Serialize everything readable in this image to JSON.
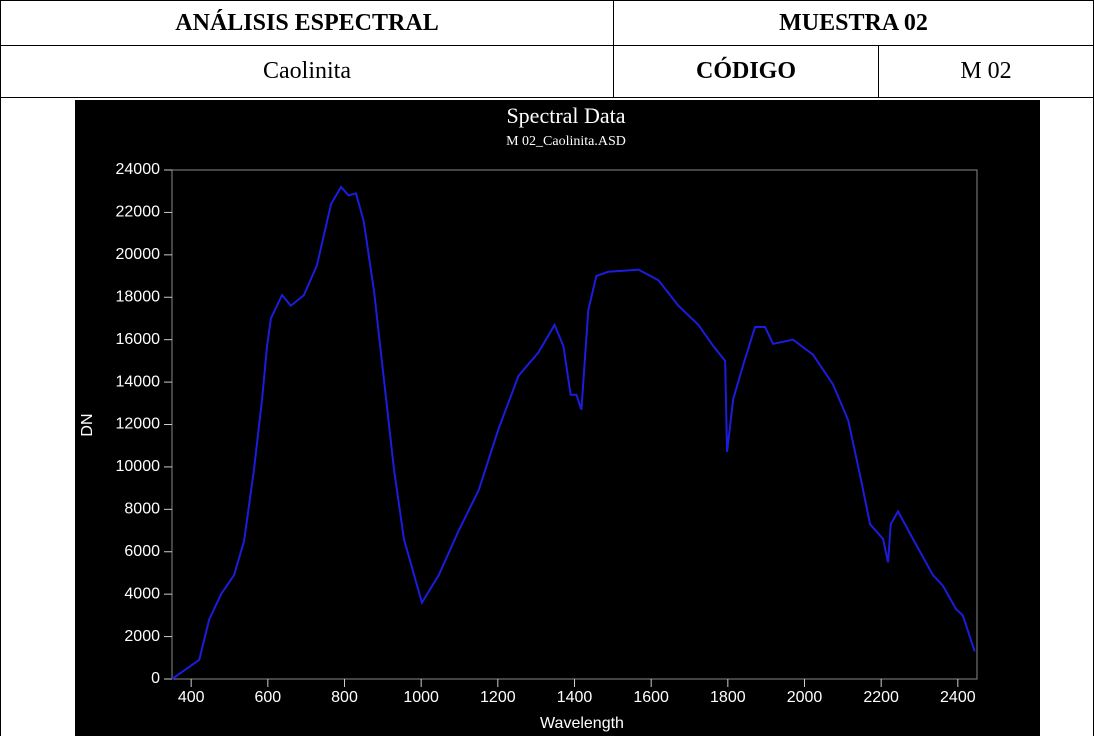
{
  "table": {
    "rows": [
      [
        "ANÁLISIS ESPECTRAL",
        "MUESTRA 02"
      ],
      [
        "Caolinita",
        "CÓDIGO",
        "M 02"
      ]
    ]
  },
  "chart_data": {
    "type": "line",
    "title": "Spectral Data",
    "subtitle": "M 02_Caolinita.ASD",
    "x_label": "Wavelength",
    "y_label": "DN",
    "x": [
      350,
      421,
      447,
      478,
      512,
      538,
      564,
      585,
      598,
      608,
      637,
      660,
      694,
      728,
      765,
      791,
      811,
      830,
      850,
      877,
      903,
      929,
      955,
      1002,
      1046,
      1098,
      1150,
      1202,
      1254,
      1306,
      1348,
      1371,
      1390,
      1405,
      1418,
      1436,
      1457,
      1488,
      1567,
      1619,
      1671,
      1723,
      1762,
      1793,
      1798,
      1814,
      1840,
      1871,
      1897,
      1918,
      1970,
      2022,
      2074,
      2114,
      2145,
      2171,
      2205,
      2218,
      2225,
      2244,
      2283,
      2335,
      2361,
      2395,
      2413,
      2444
    ],
    "series": [
      {
        "color": "#1c1cdc",
        "values": [
          0,
          900,
          2800,
          4000,
          4900,
          6500,
          9900,
          13200,
          15700,
          17000,
          18100,
          17600,
          18100,
          19500,
          22400,
          23200,
          22800,
          22900,
          21600,
          18300,
          14100,
          9900,
          6600,
          3600,
          4900,
          7000,
          8900,
          11800,
          14300,
          15400,
          16700,
          15700,
          13400,
          13400,
          12700,
          17400,
          19000,
          19200,
          19300,
          18800,
          17600,
          16700,
          15700,
          15000,
          10700,
          13200,
          14800,
          16600,
          16600,
          15800,
          16000,
          15300,
          13900,
          12200,
          9600,
          7300,
          6600,
          5500,
          7300,
          7900,
          6600,
          4900,
          4400,
          3300,
          3000,
          1300
        ]
      }
    ],
    "xlim": [
      350,
      2450
    ],
    "ylim": [
      0,
      24000
    ],
    "xticks": [
      400,
      600,
      800,
      1000,
      1200,
      1400,
      1600,
      1800,
      2000,
      2200,
      2400
    ],
    "yticks": [
      0,
      2000,
      4000,
      6000,
      8000,
      10000,
      12000,
      14000,
      16000,
      18000,
      20000,
      22000,
      24000
    ]
  }
}
